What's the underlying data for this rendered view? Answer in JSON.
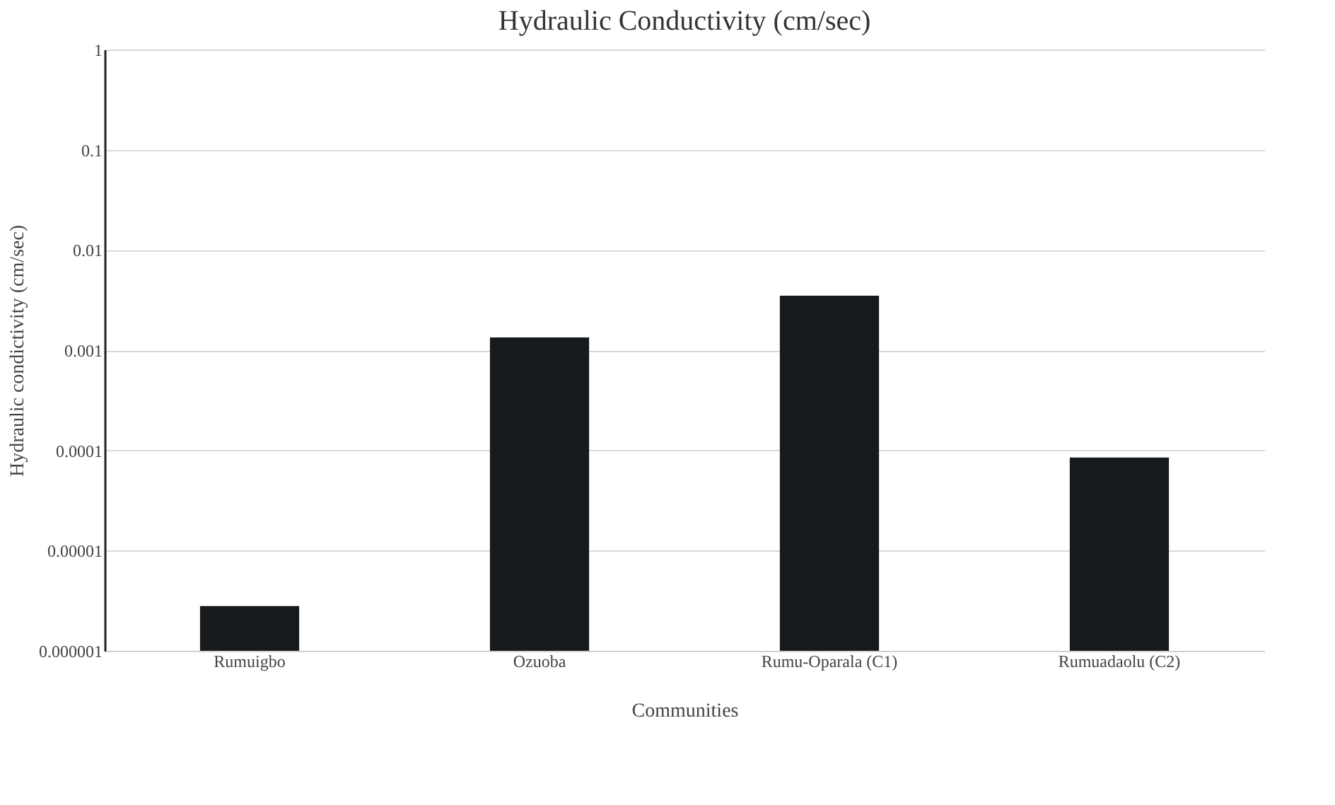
{
  "chart_data": {
    "type": "bar",
    "title": "Hydraulic  Conductivity  (cm/sec)",
    "xlabel": "Communities",
    "ylabel": "Hydraulic condictivity (cm/sec)",
    "categories": [
      "Rumuigbo",
      "Ozuoba",
      "Rumu-Oparala (C1)",
      "Rumuadaolu (C2)"
    ],
    "values": [
      2.8e-06,
      0.00134,
      0.0035,
      8.5e-05
    ],
    "color": "#171a1c",
    "log": true,
    "ylim": [
      1e-06,
      1
    ],
    "yticks": [
      {
        "value": 1e-06,
        "label": "0.000001"
      },
      {
        "value": 1e-05,
        "label": "0.00001"
      },
      0.0001,
      0.001,
      0.01,
      0.1,
      1
    ],
    "grid": "y"
  }
}
